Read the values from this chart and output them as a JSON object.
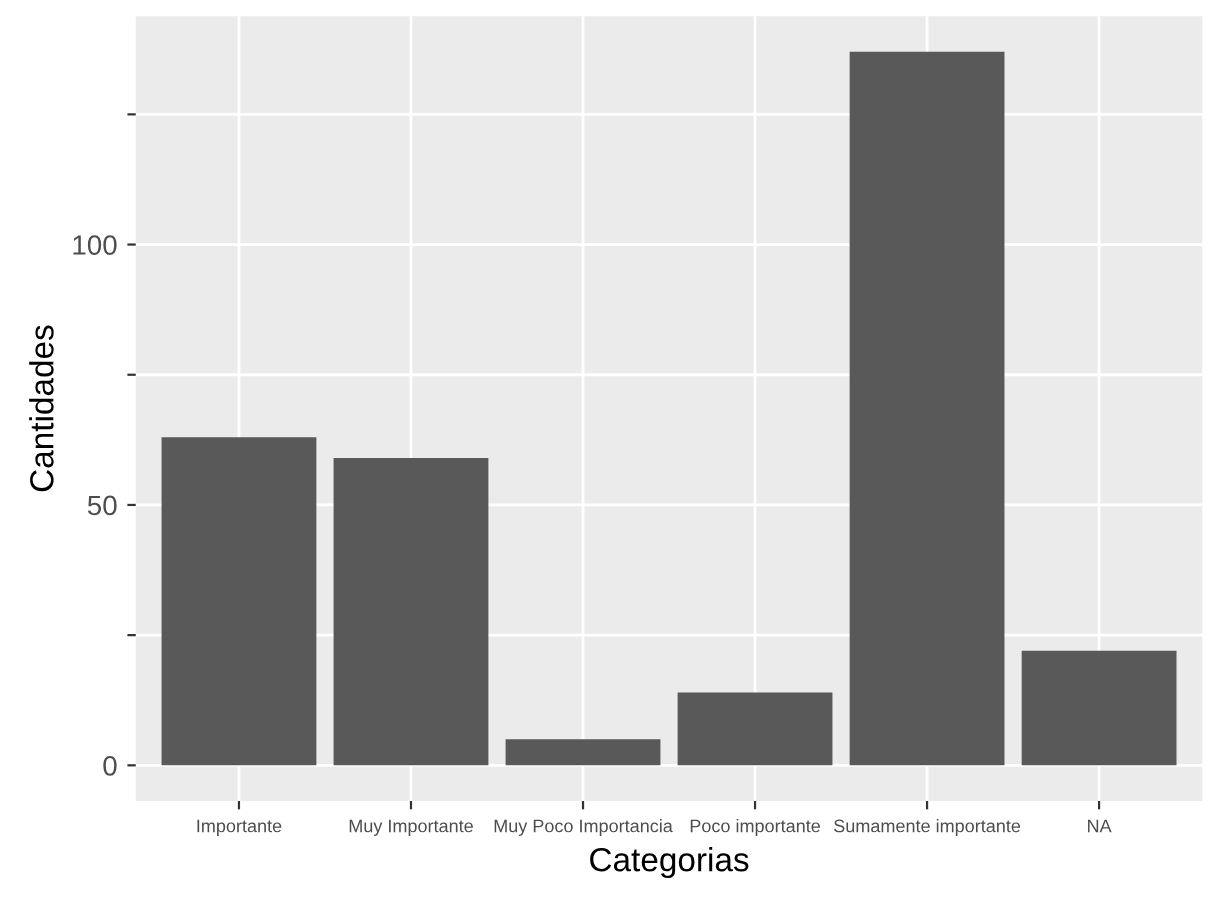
{
  "chart_data": {
    "type": "bar",
    "xlabel": "Categorias",
    "ylabel": "Cantidades",
    "categories": [
      "Importante",
      "Muy Importante",
      "Muy Poco Importancia",
      "Poco importante",
      "Sumamente importante",
      "NA"
    ],
    "values": [
      63,
      59,
      5,
      14,
      137,
      22
    ],
    "color": "#595959",
    "ylim": [
      -6.85,
      143.85
    ],
    "yticks": [
      0,
      {
        "value": 25,
        "label": null
      },
      50,
      {
        "value": 75,
        "label": null
      },
      100,
      {
        "value": 125,
        "label": null
      }
    ],
    "grid": true
  }
}
